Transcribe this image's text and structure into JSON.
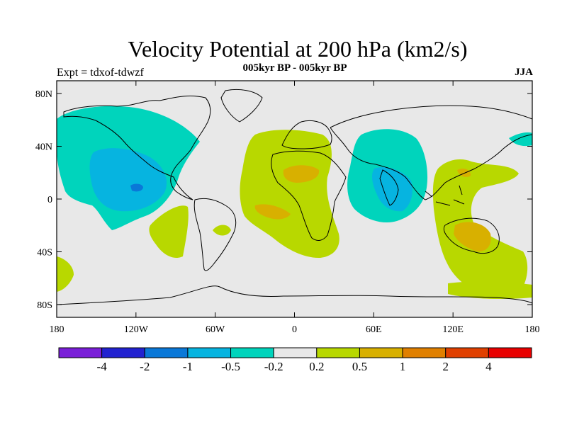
{
  "title": "Velocity Potential at 200 hPa (km2/s)",
  "subtitle": "005kyr BP - 005kyr BP",
  "left_label": "Expt = tdxof-tdwzf",
  "right_label": "JJA",
  "colors": {
    "ocean_land_bg": "#e8e8e8",
    "coast": "#000000"
  },
  "axes": {
    "x_ticks": [
      "180",
      "120W",
      "60W",
      "0",
      "60E",
      "120E",
      "180"
    ],
    "y_ticks": [
      "80N",
      "40N",
      "0",
      "40S",
      "80S"
    ]
  },
  "colorbar": {
    "colors": [
      "#7a1fd8",
      "#2222d0",
      "#0a78d8",
      "#06b4e0",
      "#00d4bc",
      "#e8e8e8",
      "#b8d800",
      "#d8b000",
      "#e08000",
      "#e04000",
      "#e80000"
    ],
    "labels": [
      "-4",
      "-2",
      "-1",
      "-0.5",
      "-0.2",
      "0.2",
      "0.5",
      "1",
      "2",
      "4"
    ]
  }
}
